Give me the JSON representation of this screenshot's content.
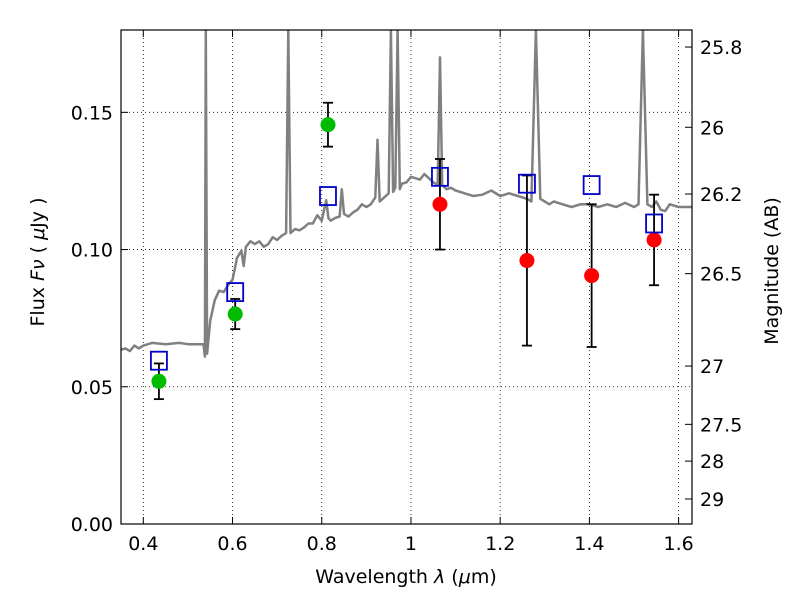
{
  "chart_data": {
    "type": "scatter",
    "xlabel": "Wavelength  λ (μm)",
    "ylabel": "Flux  Fν  ( μJy )",
    "ylabel_right": "Magnitude (AB)",
    "xlim": [
      0.35,
      1.63
    ],
    "ylim": [
      0.0,
      0.18
    ],
    "grid": "dotted",
    "x_ticks": [
      0.4,
      0.6,
      0.8,
      1.0,
      1.2,
      1.4,
      1.6
    ],
    "x_tick_labels": [
      "0.4",
      "0.6",
      "0.8",
      "1",
      "1.2",
      "1.4",
      "1.6"
    ],
    "y_ticks": [
      0.0,
      0.05,
      0.1,
      0.15
    ],
    "y_tick_labels": [
      "0.00",
      "0.05",
      "0.10",
      "0.15"
    ],
    "right_ticks": [
      {
        "label": "25.8",
        "mag": 25.8
      },
      {
        "label": "26",
        "mag": 26.0
      },
      {
        "label": "26.2",
        "mag": 26.2
      },
      {
        "label": "26.5",
        "mag": 26.5
      },
      {
        "label": "27",
        "mag": 27.0
      },
      {
        "label": "27.5",
        "mag": 27.5
      },
      {
        "label": "28",
        "mag": 28.0
      },
      {
        "label": "29",
        "mag": 29.0
      }
    ],
    "series": [
      {
        "marker": "circle-filled",
        "color": "#00bb00",
        "points": [
          {
            "x": 0.435,
            "y": 0.052,
            "err": 0.0065
          },
          {
            "x": 0.606,
            "y": 0.0765,
            "err": 0.0055
          },
          {
            "x": 0.814,
            "y": 0.1455,
            "err": 0.008
          }
        ]
      },
      {
        "marker": "circle-filled",
        "color": "#ff0000",
        "points": [
          {
            "x": 1.065,
            "y": 0.1165,
            "err": 0.0165
          },
          {
            "x": 1.26,
            "y": 0.096,
            "err": 0.031
          },
          {
            "x": 1.405,
            "y": 0.0905,
            "err": 0.026
          },
          {
            "x": 1.545,
            "y": 0.1035,
            "err": 0.0165
          }
        ]
      },
      {
        "marker": "square-open",
        "color": "#0000cc",
        "points": [
          {
            "x": 0.435,
            "y": 0.0595
          },
          {
            "x": 0.606,
            "y": 0.0845
          },
          {
            "x": 0.814,
            "y": 0.1195
          },
          {
            "x": 1.065,
            "y": 0.1265
          },
          {
            "x": 1.26,
            "y": 0.124
          },
          {
            "x": 1.405,
            "y": 0.1235
          },
          {
            "x": 1.545,
            "y": 0.1095
          }
        ]
      },
      {
        "marker": "line",
        "color": "#808080",
        "points": [
          [
            0.35,
            0.0635
          ],
          [
            0.36,
            0.064
          ],
          [
            0.37,
            0.063
          ],
          [
            0.38,
            0.065
          ],
          [
            0.39,
            0.064
          ],
          [
            0.4,
            0.065
          ],
          [
            0.42,
            0.066
          ],
          [
            0.45,
            0.0655
          ],
          [
            0.48,
            0.066
          ],
          [
            0.5,
            0.0655
          ],
          [
            0.52,
            0.0655
          ],
          [
            0.535,
            0.0655
          ],
          [
            0.538,
            0.061
          ],
          [
            0.54,
            0.18
          ],
          [
            0.543,
            0.062
          ],
          [
            0.55,
            0.074
          ],
          [
            0.56,
            0.0815
          ],
          [
            0.57,
            0.085
          ],
          [
            0.58,
            0.0845
          ],
          [
            0.59,
            0.087
          ],
          [
            0.6,
            0.089
          ],
          [
            0.605,
            0.093
          ],
          [
            0.61,
            0.097
          ],
          [
            0.62,
            0.0995
          ],
          [
            0.625,
            0.094
          ],
          [
            0.63,
            0.101
          ],
          [
            0.64,
            0.103
          ],
          [
            0.65,
            0.102
          ],
          [
            0.66,
            0.103
          ],
          [
            0.67,
            0.101
          ],
          [
            0.68,
            0.102
          ],
          [
            0.69,
            0.1045
          ],
          [
            0.7,
            0.1035
          ],
          [
            0.71,
            0.105
          ],
          [
            0.72,
            0.106
          ],
          [
            0.725,
            0.18
          ],
          [
            0.73,
            0.106
          ],
          [
            0.74,
            0.1075
          ],
          [
            0.75,
            0.107
          ],
          [
            0.76,
            0.108
          ],
          [
            0.77,
            0.1095
          ],
          [
            0.78,
            0.1095
          ],
          [
            0.79,
            0.1125
          ],
          [
            0.8,
            0.1105
          ],
          [
            0.81,
            0.118
          ],
          [
            0.815,
            0.1115
          ],
          [
            0.82,
            0.1105
          ],
          [
            0.83,
            0.1115
          ],
          [
            0.84,
            0.112
          ],
          [
            0.845,
            0.122
          ],
          [
            0.85,
            0.113
          ],
          [
            0.86,
            0.112
          ],
          [
            0.87,
            0.1135
          ],
          [
            0.88,
            0.1145
          ],
          [
            0.89,
            0.1165
          ],
          [
            0.9,
            0.1155
          ],
          [
            0.91,
            0.1165
          ],
          [
            0.92,
            0.119
          ],
          [
            0.925,
            0.14
          ],
          [
            0.93,
            0.1175
          ],
          [
            0.94,
            0.119
          ],
          [
            0.95,
            0.1205
          ],
          [
            0.955,
            0.18
          ],
          [
            0.96,
            0.121
          ],
          [
            0.965,
            0.1225
          ],
          [
            0.97,
            0.18
          ],
          [
            0.975,
            0.122
          ],
          [
            0.98,
            0.124
          ],
          [
            0.99,
            0.1245
          ],
          [
            1.0,
            0.1265
          ],
          [
            1.01,
            0.126
          ],
          [
            1.02,
            0.1255
          ],
          [
            1.03,
            0.1275
          ],
          [
            1.04,
            0.126
          ],
          [
            1.05,
            0.1245
          ],
          [
            1.06,
            0.1235
          ],
          [
            1.065,
            0.17
          ],
          [
            1.07,
            0.1235
          ],
          [
            1.08,
            0.122
          ],
          [
            1.09,
            0.1225
          ],
          [
            1.1,
            0.1215
          ],
          [
            1.12,
            0.1205
          ],
          [
            1.14,
            0.1195
          ],
          [
            1.16,
            0.12
          ],
          [
            1.18,
            0.1215
          ],
          [
            1.2,
            0.1195
          ],
          [
            1.22,
            0.1205
          ],
          [
            1.24,
            0.1195
          ],
          [
            1.26,
            0.1185
          ],
          [
            1.27,
            0.1175
          ],
          [
            1.28,
            0.18
          ],
          [
            1.29,
            0.1185
          ],
          [
            1.3,
            0.1175
          ],
          [
            1.31,
            0.1165
          ],
          [
            1.32,
            0.1175
          ],
          [
            1.34,
            0.1165
          ],
          [
            1.36,
            0.1155
          ],
          [
            1.38,
            0.1165
          ],
          [
            1.4,
            0.1165
          ],
          [
            1.42,
            0.1155
          ],
          [
            1.44,
            0.1165
          ],
          [
            1.46,
            0.1155
          ],
          [
            1.48,
            0.117
          ],
          [
            1.5,
            0.1155
          ],
          [
            1.51,
            0.1165
          ],
          [
            1.52,
            0.18
          ],
          [
            1.53,
            0.1165
          ],
          [
            1.54,
            0.1155
          ],
          [
            1.55,
            0.1175
          ],
          [
            1.56,
            0.1145
          ],
          [
            1.57,
            0.114
          ],
          [
            1.58,
            0.1165
          ],
          [
            1.6,
            0.1155
          ],
          [
            1.62,
            0.1155
          ],
          [
            1.63,
            0.1155
          ]
        ]
      }
    ]
  }
}
